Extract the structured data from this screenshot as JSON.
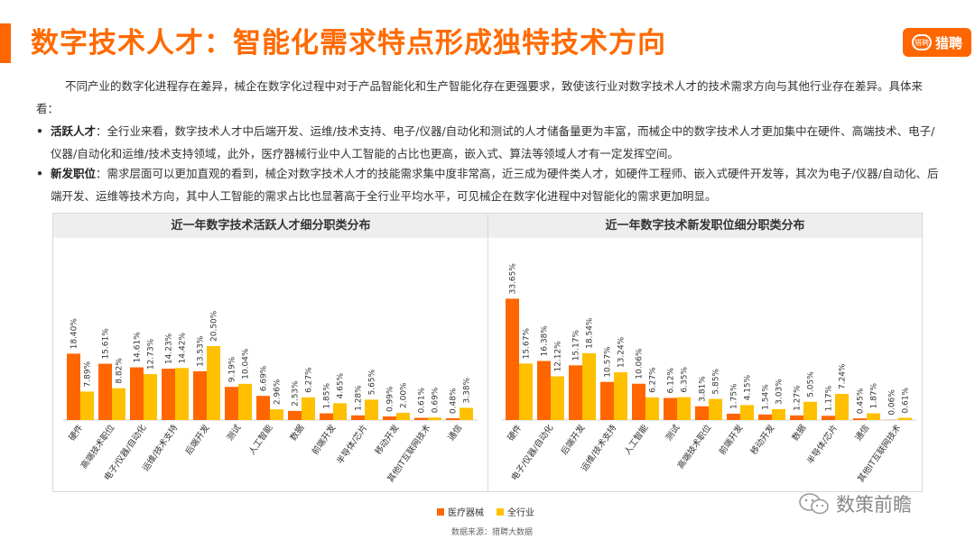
{
  "header": {
    "title": "数字技术人才：智能化需求特点形成独特技术方向",
    "logo_text": "猎聘",
    "logo_mark": "猎聘"
  },
  "intro": "不同产业的数字化进程存在差异，械企在数字化过程中对于产品智能化和生产智能化存在更强要求，致使该行业对数字技术人才的技术需求方向与其他行业存在差异。具体来看：",
  "bullets": [
    {
      "keyword": "活跃人才",
      "text": "：全行业来看，数字技术人才中后端开发、运维/技术支持、电子/仪器/自动化和测试的人才储备量更为丰富，而械企中的数字技术人才更加集中在硬件、高端技术、电子/仪器/自动化和运维/技术支持领域，此外，医疗器械行业中人工智能的占比也更高，嵌入式、算法等领域人才有一定发挥空间。"
    },
    {
      "keyword": "新发职位",
      "text": "：需求层面可以更加直观的看到，械企对数字技术人才的技能需求集中度非常高，近三成为硬件类人才，如硬件工程师、嵌入式硬件开发等，其次为电子/仪器/自动化、后端开发、运维等技术方向，其中人工智能的需求占比也显著高于全行业平均水平，可见械企在数字化进程中对智能化的需求更加明显。"
    }
  ],
  "colors": {
    "accent": "#ff6600",
    "series_medical": "#ff6600",
    "series_all": "#ffc000",
    "panel_header_bg": "#eeeeee"
  },
  "legend": [
    "医疗器械",
    "全行业"
  ],
  "source": "数据来源：猎聘大数据",
  "watermark": "数策前瞻",
  "chart_data": [
    {
      "type": "bar",
      "title": "近一年数字技术活跃人才细分职类分布",
      "categories": [
        "硬件",
        "高端技术职位",
        "电子/仪器/自动化",
        "运维/技术支持",
        "后端开发",
        "测试",
        "人工智能",
        "数据",
        "前端开发",
        "半导体/芯片",
        "移动开发",
        "其他IT互联网技术",
        "通信"
      ],
      "series": [
        {
          "name": "医疗器械",
          "values": [
            18.4,
            15.61,
            14.61,
            14.23,
            13.53,
            9.19,
            6.69,
            2.53,
            1.85,
            1.28,
            0.99,
            0.61,
            0.48
          ]
        },
        {
          "name": "全行业",
          "values": [
            7.89,
            8.82,
            12.73,
            14.42,
            20.5,
            10.04,
            2.96,
            6.27,
            4.65,
            5.65,
            2.0,
            0.69,
            3.38
          ]
        }
      ],
      "value_labels": {
        "医疗器械": [
          "18.40%",
          "15.61%",
          "14.61%",
          "14.23%",
          "13.53%",
          "9.19%",
          "6.69%",
          "2.53%",
          "1.85%",
          "1.28%",
          "0.99%",
          "0.61%",
          "0.48%"
        ],
        "全行业": [
          "7.89%",
          "8.82%",
          "12.73%",
          "14.42%",
          "20.50%",
          "10.04%",
          "2.96%",
          "6.27%",
          "4.65%",
          "5.65%",
          "2.00%",
          "0.69%",
          "3.38%"
        ]
      },
      "ylim": [
        0,
        40
      ],
      "grid": false,
      "legend_position": "bottom"
    },
    {
      "type": "bar",
      "title": "近一年数字技术新发职位细分职类分布",
      "categories": [
        "硬件",
        "电子/仪器/自动化",
        "后端开发",
        "运维/技术支持",
        "人工智能",
        "测试",
        "高端技术职位",
        "前端开发",
        "移动开发",
        "数据",
        "半导体/芯片",
        "通信",
        "其他IT互联网技术"
      ],
      "series": [
        {
          "name": "医疗器械",
          "values": [
            33.65,
            16.38,
            15.17,
            10.57,
            10.06,
            6.12,
            3.81,
            1.75,
            1.54,
            1.27,
            1.17,
            0.45,
            0.06
          ]
        },
        {
          "name": "全行业",
          "values": [
            15.67,
            12.12,
            18.54,
            13.24,
            6.27,
            6.35,
            5.85,
            4.15,
            3.03,
            5.05,
            7.24,
            1.87,
            0.61
          ]
        }
      ],
      "value_labels": {
        "医疗器械": [
          "33.65%",
          "16.38%",
          "15.17%",
          "10.57%",
          "10.06%",
          "6.12%",
          "3.81%",
          "1.75%",
          "1.54%",
          "1.27%",
          "1.17%",
          "0.45%",
          "0.06%"
        ],
        "全行业": [
          "15.67%",
          "12.12%",
          "18.54%",
          "13.24%",
          "6.27%",
          "6.35%",
          "5.85%",
          "4.15%",
          "3.03%",
          "5.05%",
          "7.24%",
          "1.87%",
          "0.61%"
        ]
      },
      "ylim": [
        0,
        40
      ],
      "grid": false,
      "legend_position": "bottom"
    }
  ]
}
